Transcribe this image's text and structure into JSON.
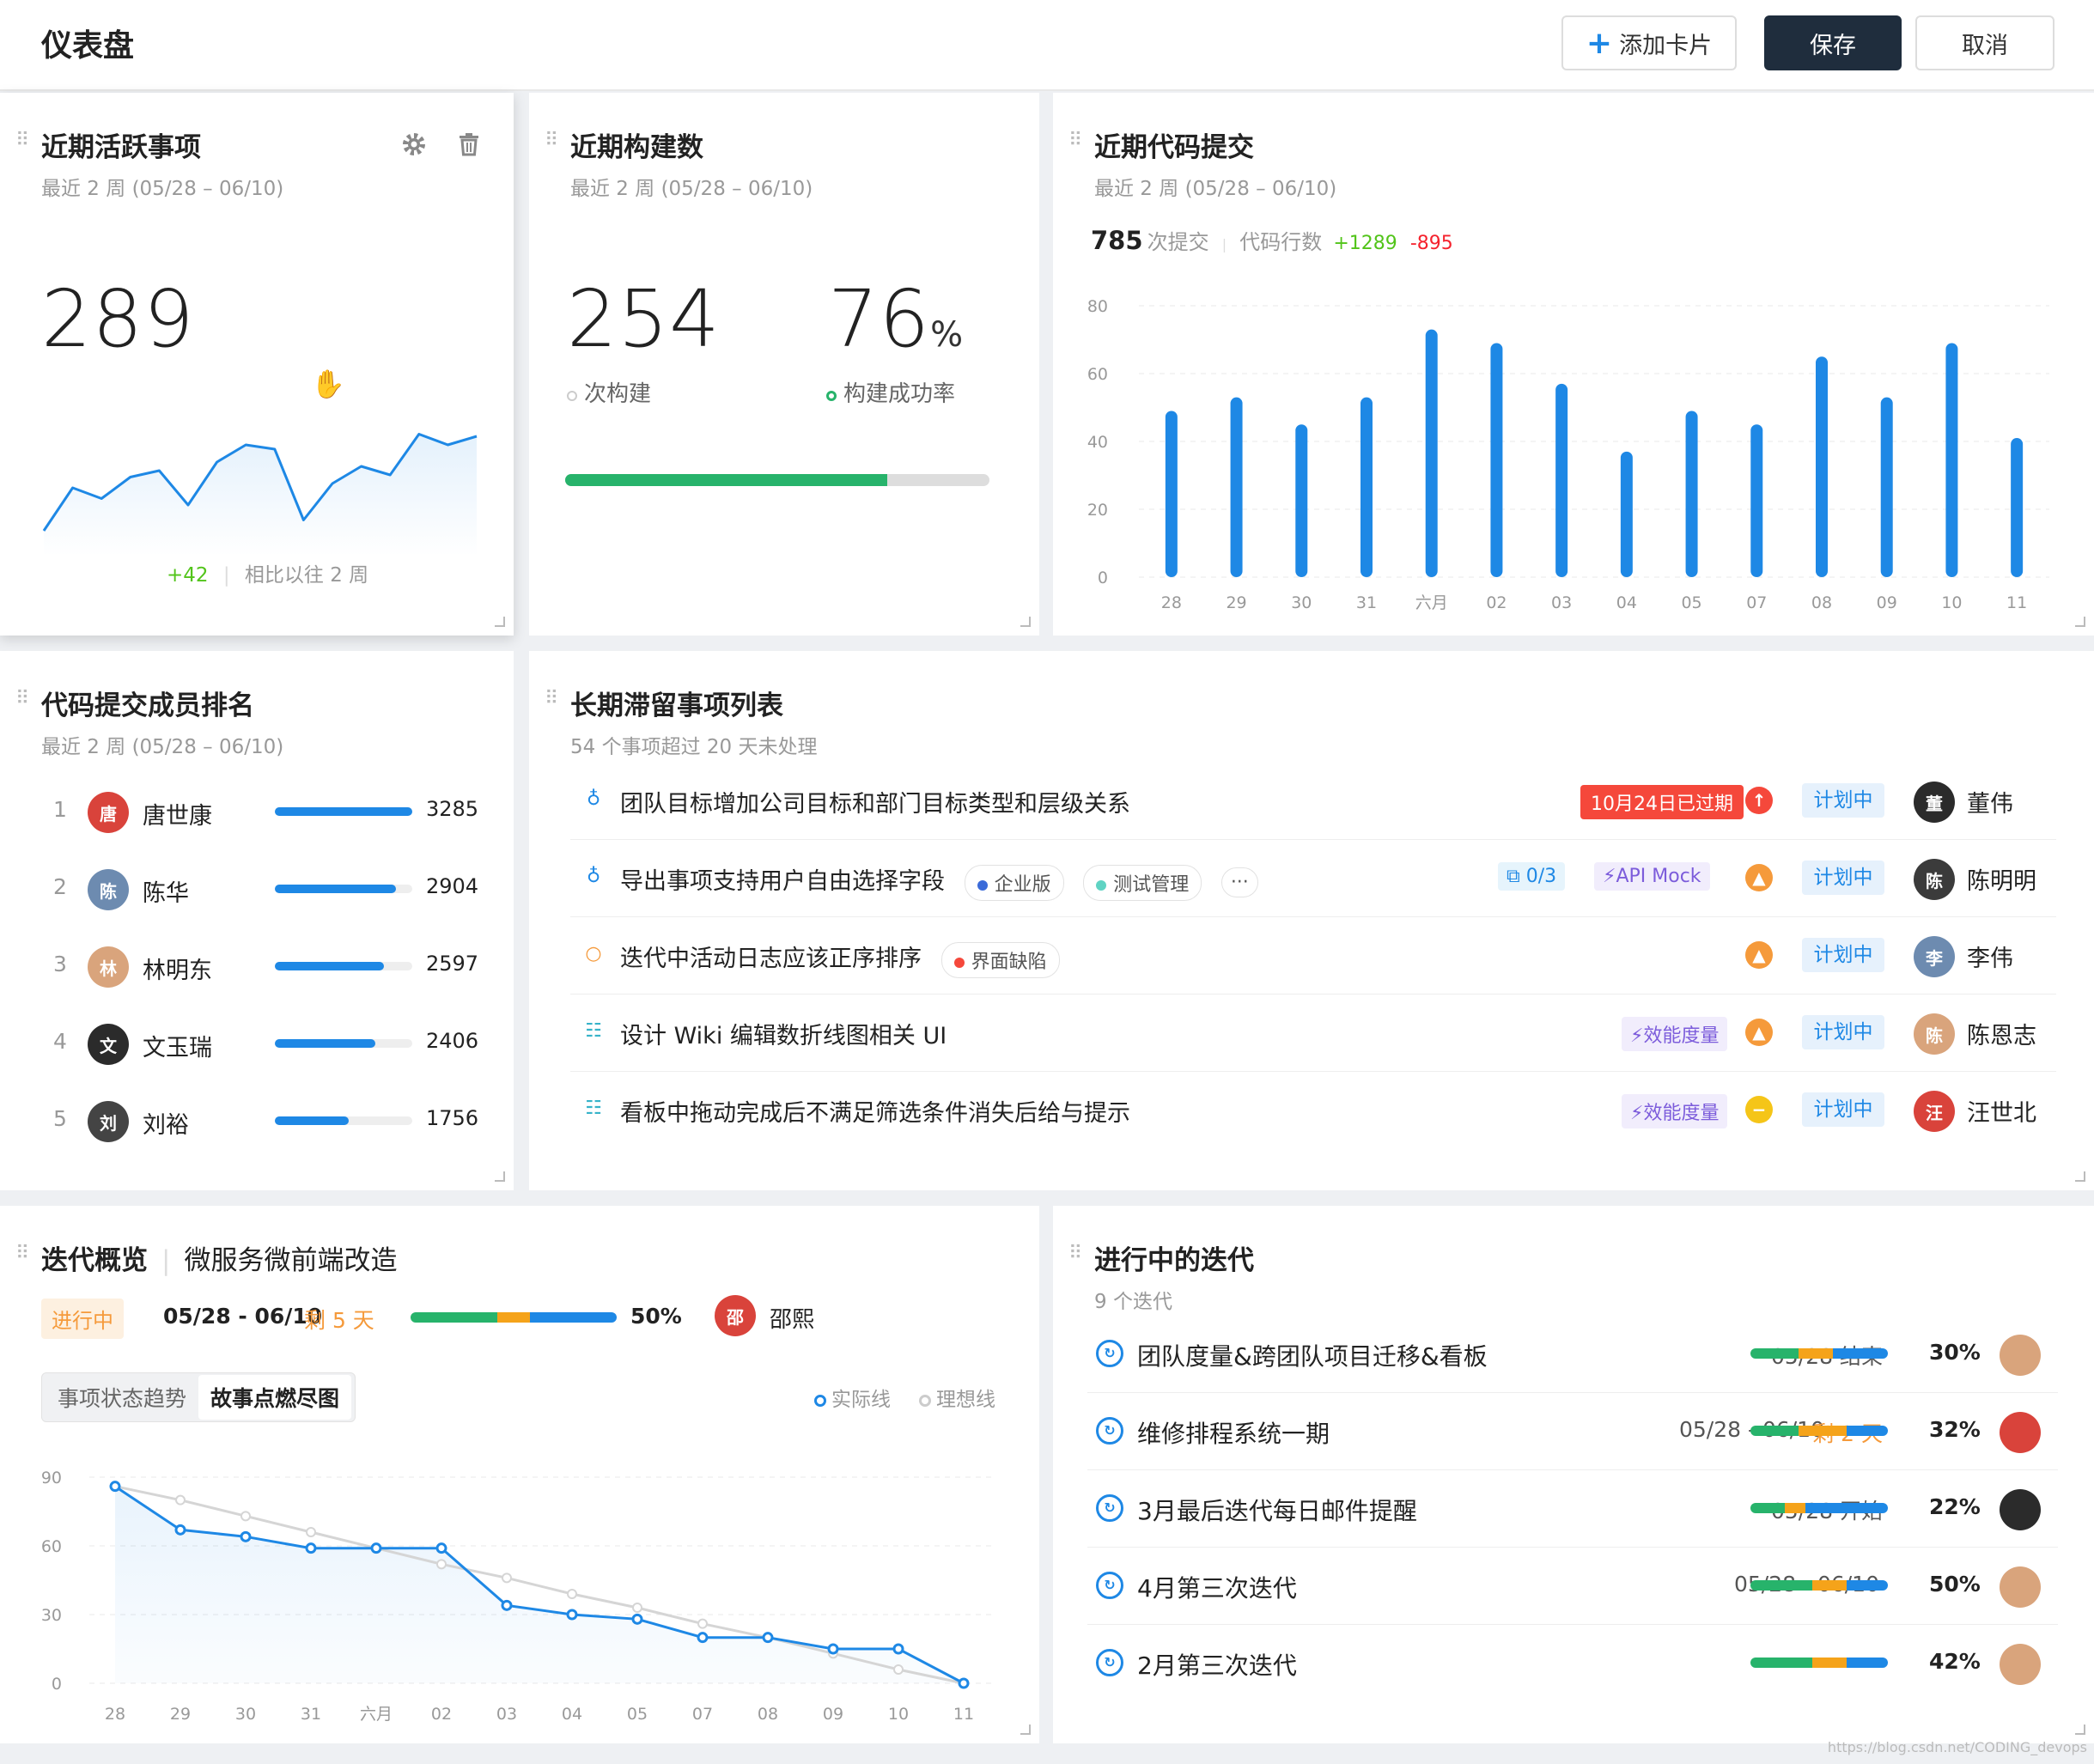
{
  "header": {
    "title": "仪表盘",
    "add_card": "添加卡片",
    "save": "保存",
    "cancel": "取消"
  },
  "active_items": {
    "title": "近期活跃事项",
    "subtitle": "最近 2 周 (05/28 – 06/10)",
    "count": "289",
    "delta": "+42",
    "compare": "相比以往 2 周",
    "chart_data": {
      "type": "area",
      "values": [
        10,
        30,
        25,
        35,
        38,
        22,
        42,
        50,
        48,
        15,
        32,
        40,
        36,
        55,
        50,
        54
      ]
    }
  },
  "builds": {
    "title": "近期构建数",
    "subtitle": "最近 2 周 (05/28 – 06/10)",
    "count": "254",
    "count_label": "次构建",
    "rate": "76",
    "rate_unit": "%",
    "rate_label": "构建成功率",
    "progress": 0.76
  },
  "commits": {
    "title": "近期代码提交",
    "subtitle": "最近 2 周 (05/28 – 06/10)",
    "count": "785",
    "count_label": "次提交",
    "lines_label": "代码行数",
    "added": "+1289",
    "removed": "-895",
    "chart_data": {
      "type": "bar",
      "categories": [
        "28",
        "29",
        "30",
        "31",
        "六月",
        "02",
        "03",
        "04",
        "05",
        "07",
        "08",
        "09",
        "10",
        "11"
      ],
      "values": [
        49,
        53,
        45,
        53,
        73,
        69,
        57,
        37,
        49,
        45,
        65,
        53,
        69,
        41
      ],
      "ylim": [
        0,
        80
      ],
      "yticks": [
        "0",
        "20",
        "40",
        "60",
        "80"
      ]
    }
  },
  "ranking": {
    "title": "代码提交成员排名",
    "subtitle": "最近 2 周 (05/28 – 06/10)",
    "max": 3285,
    "members": [
      {
        "rank": "1",
        "name": "唐世康",
        "value": "3285",
        "num": 3285,
        "color": "#d9433b"
      },
      {
        "rank": "2",
        "name": "陈华",
        "value": "2904",
        "num": 2904,
        "color": "#6d8bb0"
      },
      {
        "rank": "3",
        "name": "林明东",
        "value": "2597",
        "num": 2597,
        "color": "#d9a47c"
      },
      {
        "rank": "4",
        "name": "文玉瑞",
        "value": "2406",
        "num": 2406,
        "color": "#2b2b2b"
      },
      {
        "rank": "5",
        "name": "刘裕",
        "value": "1756",
        "num": 1756,
        "color": "#444"
      }
    ]
  },
  "stale": {
    "title": "长期滞留事项列表",
    "subtitle": "54 个事项超过 20 天未处理",
    "items": [
      {
        "title": "团队目标增加公司目标和部门目标类型和层级关系",
        "overdue": "10月24日已过期",
        "status": "计划中",
        "owner": "董伟",
        "prio_color": "#f5483b",
        "prio_glyph": "↑"
      },
      {
        "title": "导出事项支持用户自由选择字段",
        "tag1": "企业版",
        "tag2": "测试管理",
        "more": "···",
        "sub": "0/3",
        "chip": "API Mock",
        "status": "计划中",
        "owner": "陈明明",
        "prio_color": "#f59a3b",
        "prio_glyph": "▲"
      },
      {
        "title": "迭代中活动日志应该正序排序",
        "tag1": "界面缺陷",
        "status": "计划中",
        "owner": "李伟",
        "prio_color": "#f59a3b",
        "prio_glyph": "▲"
      },
      {
        "title": "设计 Wiki 编辑数折线图相关 UI",
        "chip": "效能度量",
        "status": "计划中",
        "owner": "陈恩志",
        "prio_color": "#f59a3b",
        "prio_glyph": "▲"
      },
      {
        "title": "看板中拖动完成后不满足筛选条件消失后给与提示",
        "chip": "效能度量",
        "status": "计划中",
        "owner": "汪世北",
        "prio_color": "#f5c518",
        "prio_glyph": "−"
      }
    ]
  },
  "iteration": {
    "title": "迭代概览",
    "name": "微服务微前端改造",
    "state": "进行中",
    "range": "05/28 - 06/10",
    "remain": "剩 5 天",
    "pct": "50%",
    "owner": "邵熙",
    "tab1": "事项状态趋势",
    "tab2": "故事点燃尽图",
    "legend_actual": "实际线",
    "legend_ideal": "理想线",
    "chart_data": {
      "type": "line",
      "categories": [
        "28",
        "29",
        "30",
        "31",
        "六月",
        "02",
        "03",
        "04",
        "05",
        "07",
        "08",
        "09",
        "10",
        "11"
      ],
      "yticks": [
        "0",
        "30",
        "60",
        "90"
      ],
      "ylim": [
        0,
        90
      ],
      "series": [
        {
          "values": [
            86,
            67,
            64,
            59,
            59,
            59,
            34,
            30,
            28,
            20,
            20,
            15,
            15,
            0
          ]
        },
        {
          "values": [
            86,
            80,
            73,
            66,
            59,
            52,
            46,
            39,
            33,
            26,
            20,
            13,
            6,
            0
          ]
        }
      ]
    }
  },
  "running": {
    "title": "进行中的迭代",
    "subtitle": "9 个迭代",
    "items": [
      {
        "name": "团队度量&跨团队项目迁移&看板",
        "date": "05/28 结束",
        "remain": "",
        "pct": "30%",
        "g": 0.35,
        "o": 0.25,
        "b": 0.4,
        "color": "#d9a47c"
      },
      {
        "name": "维修排程系统一期",
        "date": "05/28 - 06/10",
        "remain": "剩 2 天",
        "pct": "32%",
        "g": 0.35,
        "o": 0.35,
        "b": 0.3,
        "color": "#d9433b"
      },
      {
        "name": "3月最后迭代每日邮件提醒",
        "date": "05/28 开始",
        "remain": "",
        "pct": "22%",
        "g": 0.25,
        "o": 0.15,
        "b": 0.6,
        "color": "#2b2b2b"
      },
      {
        "name": "4月第三次迭代",
        "date": "05/28 - 06/10",
        "remain": "",
        "pct": "50%",
        "g": 0.45,
        "o": 0.25,
        "b": 0.3,
        "color": "#d9a47c"
      },
      {
        "name": "2月第三次迭代",
        "date": "",
        "remain": "",
        "pct": "42%",
        "g": 0.45,
        "o": 0.25,
        "b": 0.3,
        "color": "#d9a47c"
      }
    ]
  },
  "watermark": "https://blog.csdn.net/CODING_devops"
}
